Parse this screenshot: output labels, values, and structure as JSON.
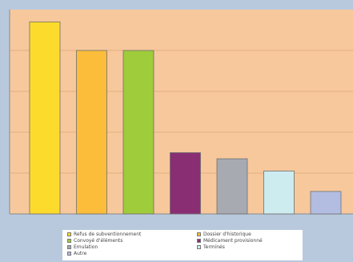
{
  "chart_data": {
    "type": "bar",
    "categories": [
      "Refus de subventionnement",
      "Dossier d'historique",
      "Convoyé d'éléments",
      "Médicament provisionné",
      "Emulation",
      "Terminés",
      "Autre"
    ],
    "values": [
      94,
      80,
      80,
      30,
      27,
      21,
      11
    ],
    "ylim": [
      0,
      100
    ],
    "colors": [
      "#fddb2c",
      "#fbbd3a",
      "#9fcc3b",
      "#8a2e74",
      "#a8aab2",
      "#ccecf0",
      "#b3bde2"
    ],
    "plot_background": "#f7c89c",
    "gridlines": true,
    "legend_position": "bottom"
  },
  "legend": {
    "items": [
      {
        "label": "Refus de subventionnement",
        "color": "#fddb2c"
      },
      {
        "label": "Dossier d'historique",
        "color": "#fbbd3a"
      },
      {
        "label": "Convoyé d'éléments",
        "color": "#9fcc3b"
      },
      {
        "label": "Médicament provisionné",
        "color": "#8a2e74"
      },
      {
        "label": "Emulation",
        "color": "#a8aab2"
      },
      {
        "label": "Terminés",
        "color": "#ccecf0"
      },
      {
        "label": "Autre",
        "color": "#b3bde2"
      }
    ]
  }
}
